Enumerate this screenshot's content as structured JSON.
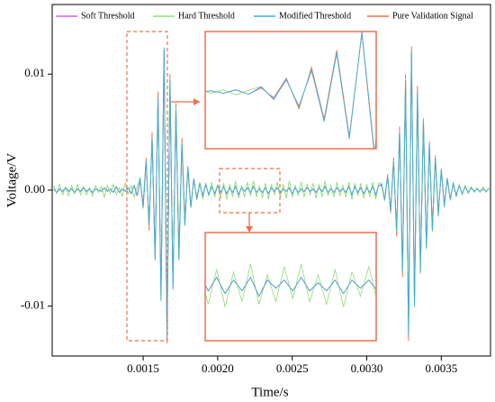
{
  "chart_data": {
    "type": "line",
    "xlabel": "Time/s",
    "ylabel": "Voltage/V",
    "xlim": [
      0.00089,
      0.00383
    ],
    "ylim": [
      -0.0143,
      0.016
    ],
    "xticks": [
      0.0015,
      {
        "value": 0.002,
        "label": "0.0020"
      },
      0.0025,
      {
        "value": 0.003,
        "label": "0.0030"
      },
      0.0035
    ],
    "yticks": [
      -0.01,
      {
        "value": 0,
        "label": "0.00"
      },
      0.01
    ],
    "legend": "top",
    "x": [
      0.0009,
      0.00092,
      0.00094,
      0.00096,
      0.00098,
      0.001,
      0.00102,
      0.00104,
      0.00106,
      0.00108,
      0.0011,
      0.00112,
      0.00114,
      0.00116,
      0.00118,
      0.0012,
      0.00122,
      0.00124,
      0.00126,
      0.00128,
      0.0013,
      0.00132,
      0.00134,
      0.00136,
      0.00138,
      0.0014,
      0.00142,
      0.00144,
      0.00146,
      0.00148,
      0.0015,
      0.00152,
      0.00154,
      0.00156,
      0.00158,
      0.0016,
      0.00162,
      0.00164,
      0.00166,
      0.00168,
      0.0017,
      0.00172,
      0.00174,
      0.00176,
      0.00178,
      0.0018,
      0.00182,
      0.00184,
      0.00186,
      0.00188,
      0.0019,
      0.00192,
      0.00194,
      0.00196,
      0.00198,
      0.002,
      0.00202,
      0.00204,
      0.00206,
      0.00208,
      0.0021,
      0.00212,
      0.00214,
      0.00216,
      0.00218,
      0.0022,
      0.00222,
      0.00224,
      0.00226,
      0.00228,
      0.0023,
      0.00232,
      0.00234,
      0.00236,
      0.00238,
      0.0024,
      0.00242,
      0.00244,
      0.00246,
      0.00248,
      0.0025,
      0.00252,
      0.00254,
      0.00256,
      0.00258,
      0.0026,
      0.00262,
      0.00264,
      0.00266,
      0.00268,
      0.0027,
      0.00272,
      0.00274,
      0.00276,
      0.00278,
      0.0028,
      0.00282,
      0.00284,
      0.00286,
      0.00288,
      0.0029,
      0.00292,
      0.00294,
      0.00296,
      0.00298,
      0.003,
      0.00302,
      0.00304,
      0.00306,
      0.00308,
      0.0031,
      0.00312,
      0.00314,
      0.00316,
      0.00318,
      0.0032,
      0.00322,
      0.00324,
      0.00326,
      0.00328,
      0.0033,
      0.00332,
      0.00334,
      0.00336,
      0.00338,
      0.0034,
      0.00342,
      0.00344,
      0.00346,
      0.00348,
      0.0035,
      0.00352,
      0.00354,
      0.00356,
      0.00358,
      0.0036,
      0.00362,
      0.00364,
      0.00366,
      0.00368,
      0.0037,
      0.00372,
      0.00374,
      0.00376,
      0.00378,
      0.0038,
      0.00382
    ],
    "series": [
      {
        "name": "Soft Threshold",
        "color": "#d65ef0",
        "values": [
          0.0001,
          -0.0002,
          0.0001,
          -0.0001,
          0.0002,
          -0.0001,
          0.0001,
          -0.0002,
          0.0001,
          -0.0001,
          0.0002,
          -0.0001,
          0.0001,
          -0.0002,
          0.0001,
          0,
          -0.0001,
          0.0002,
          -0.0001,
          0.0001,
          -0.0002,
          0.0003,
          -0.0002,
          0.0001,
          -0.0001,
          0.0002,
          -0.0003,
          0.0004,
          -0.0005,
          0.0009,
          -0.0014,
          0.0024,
          -0.0029,
          0.0043,
          -0.0058,
          0.0078,
          -0.0092,
          0.012,
          -0.0124,
          0.0092,
          -0.0082,
          0.0068,
          -0.0058,
          0.0038,
          -0.0029,
          0.0019,
          -0.0015,
          0.001,
          -0.0008,
          0.0006,
          -0.0005,
          0.0005,
          -0.0004,
          0.0003,
          -0.0003,
          0.0004,
          -0.0002,
          0.0003,
          -0.0003,
          0.0002,
          -0.0002,
          0.0003,
          -0.0004,
          0.0002,
          -0.0001,
          0.0002,
          -0.0002,
          0.0003,
          -0.0002,
          0.0001,
          -0.0002,
          0.0002,
          -0.0003,
          0.0002,
          -0.0001,
          0.0002,
          -0.0002,
          0.0001,
          -0.0001,
          0.0002,
          -0.0003,
          0.0002,
          -0.0002,
          0.0001,
          -0.0001,
          0.0002,
          -0.0001,
          0.0001,
          -0.0002,
          0.0002,
          -0.0001,
          0.0003,
          -0.0002,
          0.0001,
          -0.0002,
          0.0002,
          -0.0001,
          0.0001,
          -0.0002,
          0.0003,
          -0.0004,
          0.0003,
          -0.0002,
          0.0002,
          -0.0003,
          0.0002,
          -0.0002,
          0.0003,
          -0.0004,
          0.0004,
          0.0005,
          -0.0008,
          0.0011,
          -0.0017,
          0.0024,
          -0.0034,
          0.0048,
          -0.0068,
          0.0092,
          -0.0121,
          0.0116,
          -0.0097,
          0.0082,
          -0.0068,
          0.0058,
          -0.0048,
          0.0038,
          -0.0034,
          0.0027,
          -0.0021,
          0.0017,
          -0.0013,
          0.001,
          -0.0008,
          0.0006,
          -0.0005,
          0.0004,
          -0.0003,
          0.0003,
          -0.0002,
          0.0002,
          -0.0001,
          0.0001,
          -0.0001,
          0.0001,
          -0.0001,
          0.0001
        ]
      },
      {
        "name": "Hard Threshold",
        "color": "#8fdc78",
        "values": [
          0.0004,
          -0.0003,
          0.0005,
          -0.0004,
          0.0003,
          -0.0005,
          0.0004,
          -0.0003,
          0.0005,
          -0.0004,
          0.0003,
          -0.0004,
          0.0002,
          -0.0005,
          0.0004,
          -0.0002,
          0.0003,
          -0.0006,
          0.0004,
          -0.0003,
          0.0005,
          -0.0004,
          0.0002,
          -0.0005,
          0.0006,
          -0.0003,
          0.0004,
          -0.0006,
          0.0003,
          0.0011,
          -0.0016,
          0.0026,
          -0.0031,
          0.0046,
          -0.0061,
          0.0079,
          -0.0096,
          0.0121,
          -0.0126,
          0.0096,
          -0.0086,
          0.0071,
          -0.0061,
          0.0041,
          -0.0031,
          0.0021,
          -0.0012,
          0.0008,
          -0.0006,
          0.0007,
          -0.0008,
          0.0006,
          -0.0005,
          0.0007,
          -0.0006,
          0.0005,
          -0.0007,
          0.0006,
          -0.0008,
          0.0005,
          -0.0006,
          0.0008,
          -0.0007,
          0.0004,
          -0.0006,
          0.0007,
          -0.0005,
          0.0008,
          -0.0006,
          0.0004,
          -0.0007,
          0.0006,
          -0.0008,
          0.0005,
          -0.0004,
          0.0007,
          -0.0006,
          0.0005,
          -0.0007,
          0.0008,
          -0.0006,
          0.0004,
          -0.0005,
          0.0007,
          -0.0006,
          0.0005,
          -0.0004,
          0.0006,
          -0.0007,
          0.0005,
          -0.0006,
          0.0008,
          -0.0005,
          0.0004,
          -0.0006,
          0.0007,
          -0.0005,
          0.0004,
          -0.0006,
          0.0007,
          -0.0008,
          0.0006,
          -0.0005,
          0.0006,
          -0.0007,
          0.0005,
          -0.0006,
          0.0007,
          -0.0008,
          0.0006,
          0.0006,
          -0.0009,
          0.0013,
          -0.0019,
          0.0026,
          -0.0036,
          0.0051,
          -0.0071,
          0.0096,
          -0.0124,
          0.0119,
          -0.0101,
          0.0084,
          -0.0071,
          0.0061,
          -0.0051,
          0.0041,
          -0.0036,
          0.0029,
          -0.0023,
          0.0019,
          -0.0015,
          0.0011,
          -0.0009,
          0.0007,
          -0.0006,
          0.0005,
          -0.0004,
          0.0004,
          -0.0003,
          0.0003,
          -0.0002,
          0.0002,
          -0.0002,
          0.0003,
          -0.0002,
          0.0002
        ]
      },
      {
        "name": "Modified Threshold",
        "color": "#3aaed6",
        "values": [
          0.0001,
          -0.0002,
          0.0001,
          -0.0001,
          0.0002,
          -0.0001,
          0.0001,
          -0.0002,
          0.0001,
          -0.0001,
          0.0002,
          -0.0001,
          0.0001,
          -0.0002,
          0.0001,
          0,
          -0.0001,
          0.0002,
          -0.0001,
          0.0001,
          -0.0002,
          0.0003,
          -0.0002,
          0.0001,
          -0.0001,
          0.0002,
          -0.0003,
          0.0004,
          -0.0005,
          0.001,
          -0.0015,
          0.0025,
          -0.003,
          0.0045,
          -0.006,
          0.008,
          -0.0095,
          0.0123,
          -0.0127,
          0.0095,
          -0.0085,
          0.007,
          -0.006,
          0.004,
          -0.003,
          0.002,
          -0.0015,
          0.001,
          -0.0008,
          0.0006,
          -0.0005,
          0.0005,
          -0.0004,
          0.0003,
          -0.0003,
          0.0004,
          -0.0002,
          0.0003,
          -0.0003,
          0.0002,
          -0.0002,
          0.0003,
          -0.0004,
          0.0002,
          -0.0001,
          0.0002,
          -0.0002,
          0.0003,
          -0.0002,
          0.0001,
          -0.0002,
          0.0002,
          -0.0003,
          0.0002,
          -0.0001,
          0.0002,
          -0.0002,
          0.0001,
          -0.0001,
          0.0002,
          -0.0003,
          0.0002,
          -0.0002,
          0.0001,
          -0.0001,
          0.0002,
          -0.0001,
          0.0001,
          -0.0002,
          0.0002,
          -0.0001,
          0.0003,
          -0.0002,
          0.0001,
          -0.0002,
          0.0002,
          -0.0001,
          0.0001,
          -0.0002,
          0.0003,
          -0.0004,
          0.0003,
          -0.0002,
          0.0002,
          -0.0003,
          0.0002,
          -0.0002,
          0.0003,
          -0.0004,
          0.0004,
          0.0005,
          -0.0008,
          0.0012,
          -0.0018,
          0.0025,
          -0.0035,
          0.005,
          -0.007,
          0.0095,
          -0.0125,
          0.012,
          -0.01,
          0.0085,
          -0.007,
          0.006,
          -0.005,
          0.004,
          -0.0035,
          0.0028,
          -0.0022,
          0.0018,
          -0.0014,
          0.001,
          -0.0008,
          0.0006,
          -0.0005,
          0.0004,
          -0.0003,
          0.0003,
          -0.0002,
          0.0002,
          -0.0001,
          0.0001,
          -0.0001,
          0.0001,
          -0.0001,
          0.0001
        ]
      },
      {
        "name": "Pure Validation Signal",
        "color": "#f26f4b",
        "values": [
          0.0001,
          -0.0002,
          0.0001,
          -0.0001,
          0.0002,
          -0.0001,
          0.0001,
          -0.0002,
          0.0001,
          -0.0001,
          0.0002,
          -0.0001,
          0.0001,
          -0.0002,
          0.0001,
          0,
          -0.0001,
          0.0002,
          -0.0001,
          0.0001,
          -0.0002,
          0.0003,
          -0.0002,
          0.0001,
          -0.0001,
          0.0002,
          -0.0003,
          0.0004,
          -0.0005,
          0.0008,
          -0.0012,
          0.0028,
          -0.0035,
          0.005,
          -0.0055,
          0.0085,
          -0.009,
          0.0118,
          -0.0132,
          0.01,
          -0.008,
          0.0075,
          -0.0055,
          0.0045,
          -0.0025,
          0.0018,
          -0.0015,
          0.001,
          -0.0008,
          0.0006,
          -0.0005,
          0.0005,
          -0.0004,
          0.0003,
          -0.0003,
          0.0004,
          -0.0002,
          0.0003,
          -0.0003,
          0.0002,
          -0.0002,
          0.0003,
          -0.0004,
          0.0002,
          -0.0001,
          0.0002,
          -0.0002,
          0.0003,
          -0.0002,
          0.0001,
          -0.0002,
          0.0002,
          -0.0003,
          0.0002,
          -0.0001,
          0.0002,
          -0.0002,
          0.0001,
          -0.0001,
          0.0002,
          -0.0003,
          0.0002,
          -0.0002,
          0.0001,
          -0.0001,
          0.0002,
          -0.0001,
          0.0001,
          -0.0002,
          0.0002,
          -0.0001,
          0.0003,
          -0.0002,
          0.0001,
          -0.0002,
          0.0002,
          -0.0001,
          0.0001,
          -0.0002,
          0.0003,
          -0.0004,
          0.0003,
          -0.0002,
          0.0002,
          -0.0003,
          0.0002,
          -0.0002,
          0.0003,
          -0.0004,
          0.0004,
          0.0004,
          -0.0009,
          0.0014,
          -0.002,
          0.0028,
          -0.004,
          0.0055,
          -0.0075,
          0.01,
          -0.013,
          0.0124,
          -0.0098,
          0.009,
          -0.0072,
          0.0062,
          -0.0048,
          0.0042,
          -0.0032,
          0.003,
          -0.002,
          0.0016,
          -0.0012,
          0.0009,
          -0.0007,
          0.0005,
          -0.0004,
          0.0004,
          -0.0003,
          0.0003,
          -0.0002,
          0.0002,
          -0.0001,
          0.0001,
          -0.0001,
          0.0001,
          -0.0001,
          0.0001
        ]
      }
    ]
  }
}
